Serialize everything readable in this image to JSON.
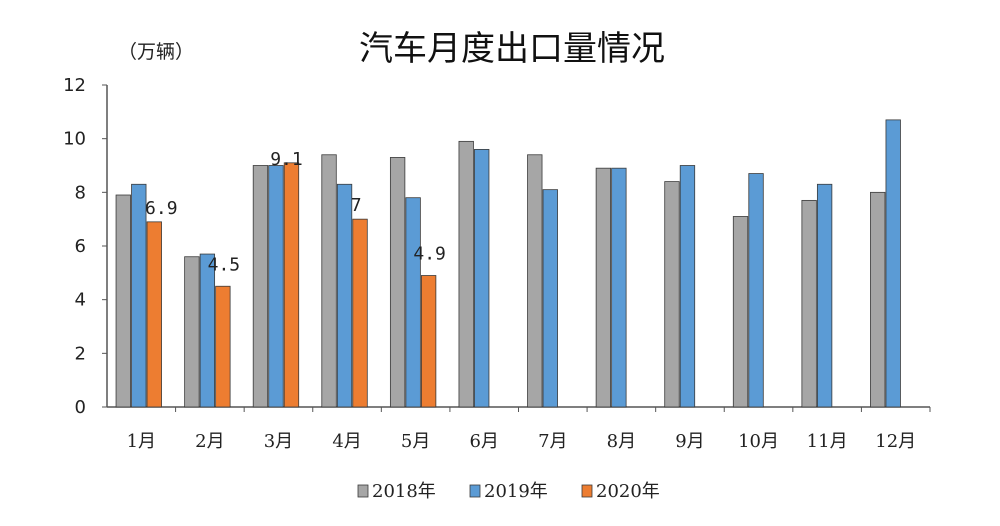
{
  "chart_data": {
    "type": "bar",
    "title": "汽车月度出口量情况",
    "unit_label": "（万辆）",
    "categories": [
      "1月",
      "2月",
      "3月",
      "4月",
      "5月",
      "6月",
      "7月",
      "8月",
      "9月",
      "10月",
      "11月",
      "12月"
    ],
    "series": [
      {
        "name": "2018年",
        "color": "#a6a6a6",
        "values": [
          7.9,
          5.6,
          9.0,
          9.4,
          9.3,
          9.9,
          9.4,
          8.9,
          8.4,
          7.1,
          7.7,
          8.0
        ]
      },
      {
        "name": "2019年",
        "color": "#5b9bd5",
        "values": [
          8.3,
          5.7,
          9.0,
          8.3,
          7.8,
          9.6,
          8.1,
          8.9,
          9.0,
          8.7,
          8.3,
          10.7
        ]
      },
      {
        "name": "2020年",
        "color": "#ed7d31",
        "values": [
          6.9,
          4.5,
          9.1,
          7.0,
          4.9,
          null,
          null,
          null,
          null,
          null,
          null,
          null
        ]
      }
    ],
    "data_labels": [
      "6.9",
      "4.5",
      "9.1",
      "7",
      "4.9"
    ],
    "y_ticks": [
      "0",
      "2",
      "4",
      "6",
      "8",
      "10",
      "12"
    ],
    "ylim": [
      0,
      12
    ],
    "grid": false,
    "legend_position": "bottom"
  }
}
